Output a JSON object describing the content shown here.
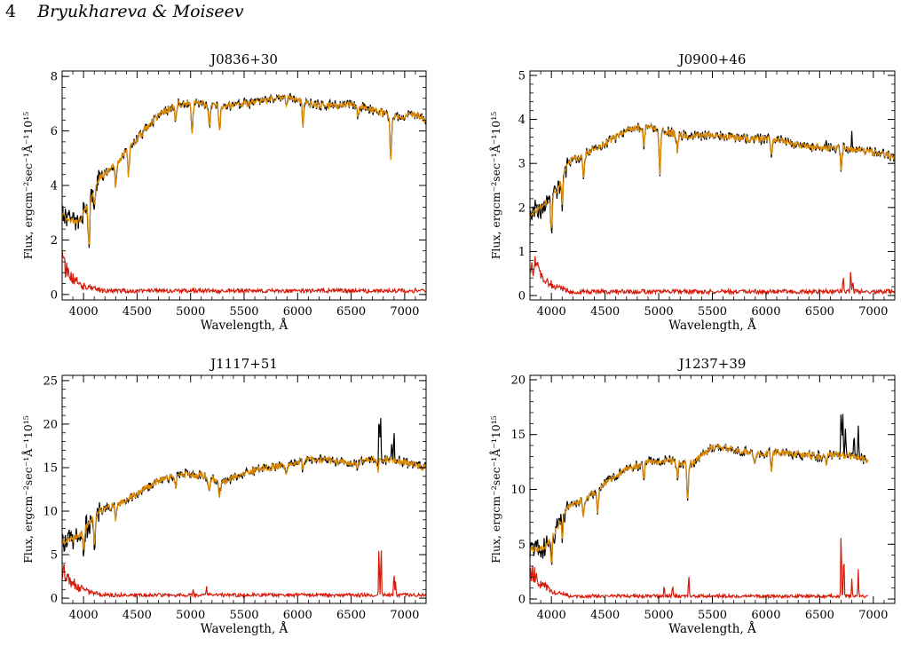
{
  "header": {
    "page_number": "4",
    "authors": "Bryukhareva & Moiseev"
  },
  "colors": {
    "observed": "#000000",
    "model": "#e08a00",
    "residual": "#d61a0a"
  },
  "chart_data": [
    {
      "type": "line",
      "title": "J0836+30",
      "xlabel": "Wavelength, Å",
      "ylabel": "Flux, ergcm⁻²sec⁻¹Å⁻¹10¹⁵",
      "xlim": [
        3800,
        7200
      ],
      "ylim": [
        -0.2,
        8.2
      ],
      "xticks": [
        4000,
        4500,
        5000,
        5500,
        6000,
        6500,
        7000
      ],
      "yticks": [
        0,
        2,
        4,
        6,
        8
      ],
      "x_end": 7200,
      "continuum": [
        [
          3800,
          2.9
        ],
        [
          3950,
          2.6
        ],
        [
          4050,
          3.4
        ],
        [
          4150,
          4.3
        ],
        [
          4300,
          4.8
        ],
        [
          4500,
          5.7
        ],
        [
          4700,
          6.6
        ],
        [
          4900,
          7.0
        ],
        [
          5100,
          7.0
        ],
        [
          5300,
          6.9
        ],
        [
          5500,
          7.0
        ],
        [
          5700,
          7.1
        ],
        [
          5900,
          7.3
        ],
        [
          6100,
          7.0
        ],
        [
          6300,
          6.9
        ],
        [
          6500,
          7.0
        ],
        [
          6700,
          6.8
        ],
        [
          6900,
          6.5
        ],
        [
          7100,
          6.6
        ],
        [
          7200,
          6.4
        ]
      ],
      "absorption_lines": [
        [
          4050,
          1.6
        ],
        [
          4102,
          0.6
        ],
        [
          4300,
          0.8
        ],
        [
          4420,
          1.0
        ],
        [
          4861,
          0.6
        ],
        [
          5015,
          1.2
        ],
        [
          5175,
          0.9
        ],
        [
          5270,
          1.0
        ],
        [
          5895,
          0.5
        ],
        [
          6050,
          1.0
        ],
        [
          6563,
          0.4
        ],
        [
          6870,
          1.8
        ]
      ],
      "emission_lines": [],
      "residual": {
        "blue_peak": 1.0,
        "level": 0.15,
        "peaks": [
          [
            6720,
            0.1
          ],
          [
            7100,
            0.12
          ]
        ]
      }
    },
    {
      "type": "line",
      "title": "J0900+46",
      "xlabel": "Wavelength, Å",
      "ylabel": "Flux, ergcm⁻²sec⁻¹Å⁻¹10¹⁵",
      "xlim": [
        3800,
        7200
      ],
      "ylim": [
        -0.1,
        5.1
      ],
      "xticks": [
        4000,
        4500,
        5000,
        5500,
        6000,
        6500,
        7000
      ],
      "yticks": [
        0,
        1,
        2,
        3,
        4,
        5
      ],
      "x_end": 7200,
      "continuum": [
        [
          3800,
          1.8
        ],
        [
          3950,
          2.1
        ],
        [
          4050,
          2.4
        ],
        [
          4150,
          3.0
        ],
        [
          4300,
          3.2
        ],
        [
          4500,
          3.45
        ],
        [
          4700,
          3.75
        ],
        [
          4900,
          3.85
        ],
        [
          5100,
          3.7
        ],
        [
          5300,
          3.6
        ],
        [
          5500,
          3.65
        ],
        [
          5700,
          3.6
        ],
        [
          5900,
          3.55
        ],
        [
          6100,
          3.55
        ],
        [
          6300,
          3.4
        ],
        [
          6500,
          3.35
        ],
        [
          6700,
          3.35
        ],
        [
          6900,
          3.3
        ],
        [
          7100,
          3.2
        ],
        [
          7200,
          3.15
        ]
      ],
      "absorption_lines": [
        [
          4000,
          0.8
        ],
        [
          4102,
          0.6
        ],
        [
          4300,
          0.6
        ],
        [
          4861,
          0.4
        ],
        [
          5010,
          1.0
        ],
        [
          5175,
          0.4
        ],
        [
          6050,
          0.4
        ],
        [
          6700,
          0.5
        ]
      ],
      "emission_lines": [
        [
          6563,
          0.1
        ],
        [
          6800,
          0.4
        ]
      ],
      "residual": {
        "blue_peak": 0.8,
        "level": 0.1,
        "peaks": [
          [
            6720,
            0.4
          ],
          [
            6790,
            0.55
          ],
          [
            6810,
            0.25
          ]
        ]
      }
    },
    {
      "type": "line",
      "title": "J1117+51",
      "xlabel": "Wavelength, Å",
      "ylabel": "Flux, ergcm⁻²sec⁻¹Å⁻¹10¹⁵",
      "xlim": [
        3800,
        7200
      ],
      "ylim": [
        -0.6,
        25.6
      ],
      "xticks": [
        4000,
        4500,
        5000,
        5500,
        6000,
        6500,
        7000
      ],
      "yticks": [
        0,
        5,
        10,
        15,
        20,
        25
      ],
      "x_end": 7200,
      "continuum": [
        [
          3800,
          6.5
        ],
        [
          3950,
          7.0
        ],
        [
          4050,
          8.5
        ],
        [
          4150,
          10.0
        ],
        [
          4300,
          10.7
        ],
        [
          4500,
          12.0
        ],
        [
          4700,
          13.5
        ],
        [
          4900,
          14.2
        ],
        [
          5100,
          14.1
        ],
        [
          5300,
          13.3
        ],
        [
          5500,
          14.3
        ],
        [
          5700,
          15.0
        ],
        [
          5900,
          15.3
        ],
        [
          6100,
          16.0
        ],
        [
          6300,
          15.8
        ],
        [
          6500,
          15.5
        ],
        [
          6700,
          16.0
        ],
        [
          6900,
          15.8
        ],
        [
          7100,
          15.3
        ],
        [
          7200,
          15.0
        ]
      ],
      "absorption_lines": [
        [
          4000,
          2.5
        ],
        [
          4102,
          3.0
        ],
        [
          4300,
          2.0
        ],
        [
          4861,
          1.5
        ],
        [
          5175,
          1.5
        ],
        [
          5270,
          2.0
        ],
        [
          5895,
          1.0
        ],
        [
          6050,
          1.2
        ],
        [
          6563,
          0.8
        ],
        [
          6750,
          1.2
        ]
      ],
      "emission_lines": [
        [
          6760,
          5.5
        ],
        [
          6775,
          4.5
        ],
        [
          6880,
          2.0
        ],
        [
          6900,
          3.0
        ]
      ],
      "residual": {
        "blue_peak": 3.0,
        "level": 0.4,
        "peaks": [
          [
            5025,
            0.6
          ],
          [
            5150,
            1.0
          ],
          [
            6760,
            5.8
          ],
          [
            6780,
            5.8
          ],
          [
            6900,
            2.8
          ],
          [
            6915,
            1.5
          ]
        ]
      }
    },
    {
      "type": "line",
      "title": "J1237+39",
      "xlabel": "Wavelength, Å",
      "ylabel": "Flux, ergcm⁻²sec⁻¹Å⁻¹10¹⁵",
      "xlim": [
        3800,
        7200
      ],
      "ylim": [
        -0.4,
        20.4
      ],
      "xticks": [
        4000,
        4500,
        5000,
        5500,
        6000,
        6500,
        7000
      ],
      "yticks": [
        0,
        5,
        10,
        15,
        20
      ],
      "x_end": 6950,
      "continuum": [
        [
          3800,
          4.5
        ],
        [
          3950,
          4.8
        ],
        [
          4050,
          6.5
        ],
        [
          4150,
          8.5
        ],
        [
          4300,
          9.0
        ],
        [
          4500,
          10.5
        ],
        [
          4700,
          11.8
        ],
        [
          4900,
          12.5
        ],
        [
          5100,
          12.6
        ],
        [
          5300,
          12.3
        ],
        [
          5500,
          13.8
        ],
        [
          5700,
          13.7
        ],
        [
          5900,
          13.2
        ],
        [
          6100,
          13.4
        ],
        [
          6300,
          13.2
        ],
        [
          6500,
          13.0
        ],
        [
          6700,
          13.2
        ],
        [
          6900,
          12.8
        ],
        [
          6950,
          12.7
        ]
      ],
      "absorption_lines": [
        [
          4000,
          2.5
        ],
        [
          4102,
          2.0
        ],
        [
          4300,
          1.5
        ],
        [
          4430,
          2.0
        ],
        [
          4861,
          1.5
        ],
        [
          5175,
          1.2
        ],
        [
          5270,
          3.5
        ],
        [
          5895,
          1.0
        ],
        [
          6050,
          1.5
        ],
        [
          6563,
          0.8
        ]
      ],
      "emission_lines": [
        [
          6700,
          4.0
        ],
        [
          6715,
          3.5
        ],
        [
          6740,
          2.5
        ],
        [
          6820,
          2.0
        ],
        [
          6860,
          3.0
        ]
      ],
      "residual": {
        "blue_peak": 2.5,
        "level": 0.3,
        "peaks": [
          [
            5050,
            1.0
          ],
          [
            5130,
            1.0
          ],
          [
            5280,
            2.0
          ],
          [
            6700,
            6.2
          ],
          [
            6725,
            4.0
          ],
          [
            6800,
            1.5
          ],
          [
            6860,
            2.5
          ]
        ]
      }
    }
  ]
}
